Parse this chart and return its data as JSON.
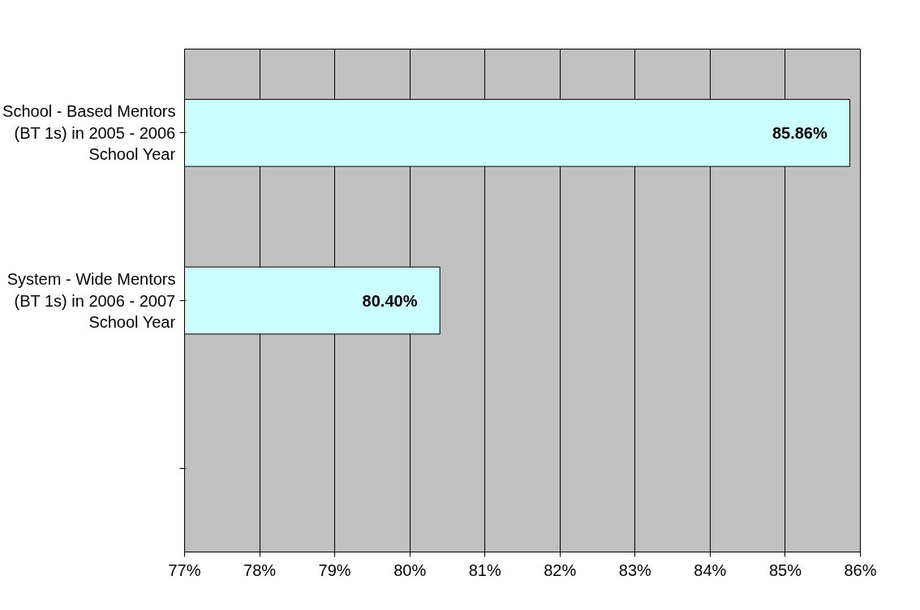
{
  "chart_data": {
    "type": "bar",
    "orientation": "horizontal",
    "categories": [
      "School - Based Mentors (BT 1s) in 2005 - 2006 School Year",
      "System - Wide Mentors (BT 1s) in 2006 - 2007 School Year",
      null
    ],
    "values": [
      85.86,
      80.4,
      null
    ],
    "value_labels": [
      "85.86%",
      "80.40%",
      null
    ],
    "color": "#ccffff",
    "xlim": [
      77,
      86
    ],
    "xticks": [
      {
        "value": 77,
        "label": "77%"
      },
      {
        "value": 78,
        "label": "78%"
      },
      {
        "value": 79,
        "label": "79%"
      },
      {
        "value": 80,
        "label": "80%"
      },
      {
        "value": 81,
        "label": "81%"
      },
      {
        "value": 82,
        "label": "82%"
      },
      {
        "value": 83,
        "label": "83%"
      },
      {
        "value": 84,
        "label": "84%"
      },
      {
        "value": 85,
        "label": "85%"
      },
      {
        "value": 86,
        "label": "86%"
      }
    ],
    "grid": "x"
  }
}
